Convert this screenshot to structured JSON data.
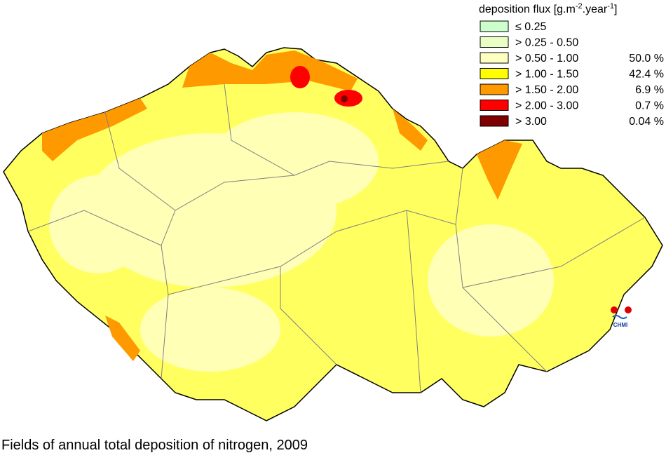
{
  "legend": {
    "title": {
      "text": "deposition flux [g.m",
      "exp1": "-2",
      "mid": ".year",
      "exp2": "-1",
      "end": "]"
    },
    "items": [
      {
        "label": "≤ 0.25",
        "color": "#ccffcc"
      },
      {
        "label": "> 0.25 - 0.50",
        "color": "#eaffc4"
      },
      {
        "label": "> 0.50 - 1.00",
        "color": "#ffffc0",
        "share": "50.0 %"
      },
      {
        "label": "> 1.00 - 1.50",
        "color": "#ffff00",
        "share": "42.4 %"
      },
      {
        "label": "> 1.50 - 2.00",
        "color": "#ff9900",
        "share": "6.9 %"
      },
      {
        "label": "> 2.00 - 3.00",
        "color": "#ff0000",
        "share": "0.7 %"
      },
      {
        "label": "> 3.00",
        "color": "#800000",
        "share": "0.04 %"
      }
    ]
  },
  "logo": "CHMI",
  "caption": "Fields of annual total deposition of nitrogen, 2009"
}
